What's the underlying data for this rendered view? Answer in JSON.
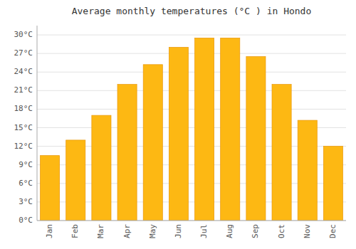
{
  "chart_data": {
    "type": "bar",
    "title": "Average monthly temperatures (°C ) in Hondo",
    "categories": [
      "Jan",
      "Feb",
      "Mar",
      "Apr",
      "May",
      "Jun",
      "Jul",
      "Aug",
      "Sep",
      "Oct",
      "Nov",
      "Dec"
    ],
    "values": [
      10.5,
      13.0,
      17.0,
      22.0,
      25.2,
      28.0,
      29.5,
      29.5,
      26.5,
      22.0,
      16.2,
      12.0
    ],
    "color": "#FDB813",
    "ylim": [
      0,
      31.5
    ],
    "yticks": [
      {
        "value": 0,
        "label": "0°C"
      },
      {
        "value": 3,
        "label": "3°C"
      },
      {
        "value": 6,
        "label": "6°C"
      },
      {
        "value": 9,
        "label": "9°C"
      },
      {
        "value": 12,
        "label": "12°C"
      },
      {
        "value": 15,
        "label": "15°C"
      },
      {
        "value": 18,
        "label": "18°C"
      },
      {
        "value": 21,
        "label": "21°C"
      },
      {
        "value": 24,
        "label": "24°C"
      },
      {
        "value": 27,
        "label": "27°C"
      },
      {
        "value": 30,
        "label": "30°C"
      }
    ],
    "grid": true
  }
}
